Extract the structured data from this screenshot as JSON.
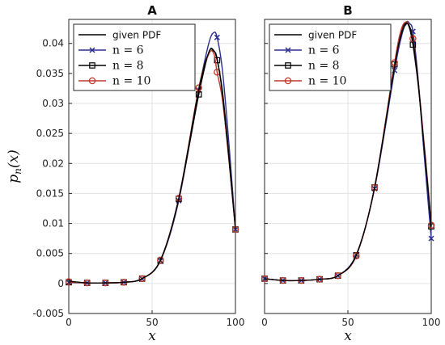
{
  "chart_data": [
    {
      "type": "line",
      "title": "A",
      "xlabel": "x",
      "ylabel": "p_n(x)",
      "xlim": [
        0,
        100
      ],
      "ylim": [
        -0.005,
        0.044
      ],
      "xticks": [
        "0",
        "50",
        "100"
      ],
      "yticks": [
        "-0.005",
        "0",
        "0.005",
        "0.01",
        "0.015",
        "0.02",
        "0.025",
        "0.03",
        "0.035",
        "0.04"
      ],
      "grid": true,
      "legend_position": "top-left",
      "x": [
        0,
        11,
        22,
        33,
        44,
        55,
        66,
        78,
        84,
        87,
        89,
        92,
        95,
        98,
        100
      ],
      "series": [
        {
          "name": "given PDF",
          "color": "#000000",
          "marker": "none",
          "values": [
            0.0004,
            0.0001,
            0.0001,
            0.0002,
            0.0008,
            0.0039,
            0.0142,
            0.0323,
            0.0385,
            0.0387,
            0.0375,
            0.032,
            0.024,
            0.015,
            0.009
          ]
        },
        {
          "name": "n = 6",
          "color": "#2b2f8f",
          "marker": "x",
          "values": [
            0.0002,
            0.0001,
            0.0001,
            0.0002,
            0.0008,
            0.0038,
            0.0138,
            0.0322,
            0.04,
            0.0418,
            0.041,
            0.036,
            0.027,
            0.0165,
            0.009
          ]
        },
        {
          "name": "n = 8",
          "color": "#000000",
          "marker": "square",
          "values": [
            0.0002,
            0.0001,
            0.0001,
            0.0002,
            0.0008,
            0.0038,
            0.0141,
            0.0315,
            0.0385,
            0.0388,
            0.0372,
            0.0325,
            0.0245,
            0.0155,
            0.009
          ]
        },
        {
          "name": "n = 10",
          "color": "#c0392b",
          "marker": "circle",
          "values": [
            0.0003,
            0.0001,
            0.0001,
            0.0002,
            0.0008,
            0.0039,
            0.0142,
            0.0326,
            0.0382,
            0.0383,
            0.0352,
            0.031,
            0.0235,
            0.015,
            0.009
          ]
        }
      ]
    },
    {
      "type": "line",
      "title": "B",
      "xlabel": "x",
      "ylabel": "",
      "xlim": [
        0,
        100
      ],
      "ylim": [
        -0.005,
        0.044
      ],
      "xticks": [
        "0",
        "50",
        "100"
      ],
      "yticks": [],
      "grid": true,
      "legend_position": "top-left",
      "x": [
        0,
        11,
        22,
        33,
        44,
        55,
        66,
        78,
        82,
        85,
        87,
        89,
        92,
        95,
        98,
        100
      ],
      "series": [
        {
          "name": "given PDF",
          "color": "#000000",
          "marker": "none",
          "values": [
            0.0008,
            0.0005,
            0.0005,
            0.0007,
            0.0013,
            0.0047,
            0.016,
            0.0362,
            0.0415,
            0.0432,
            0.0428,
            0.0405,
            0.034,
            0.025,
            0.016,
            0.0095
          ]
        },
        {
          "name": "n = 6",
          "color": "#2b2f8f",
          "marker": "x",
          "values": [
            0.0008,
            0.0005,
            0.0005,
            0.0007,
            0.0013,
            0.0048,
            0.0158,
            0.0355,
            0.041,
            0.0435,
            0.0433,
            0.042,
            0.0345,
            0.024,
            0.014,
            0.0075
          ]
        },
        {
          "name": "n = 8",
          "color": "#000000",
          "marker": "square",
          "values": [
            0.0008,
            0.0005,
            0.0005,
            0.0007,
            0.0013,
            0.0047,
            0.016,
            0.0365,
            0.042,
            0.0434,
            0.0425,
            0.0398,
            0.0335,
            0.025,
            0.016,
            0.0095
          ]
        },
        {
          "name": "n = 10",
          "color": "#c0392b",
          "marker": "circle",
          "values": [
            0.0008,
            0.0005,
            0.0005,
            0.0007,
            0.0013,
            0.0046,
            0.016,
            0.0368,
            0.0423,
            0.0436,
            0.0428,
            0.0408,
            0.0342,
            0.0255,
            0.0165,
            0.0097
          ]
        }
      ]
    }
  ]
}
